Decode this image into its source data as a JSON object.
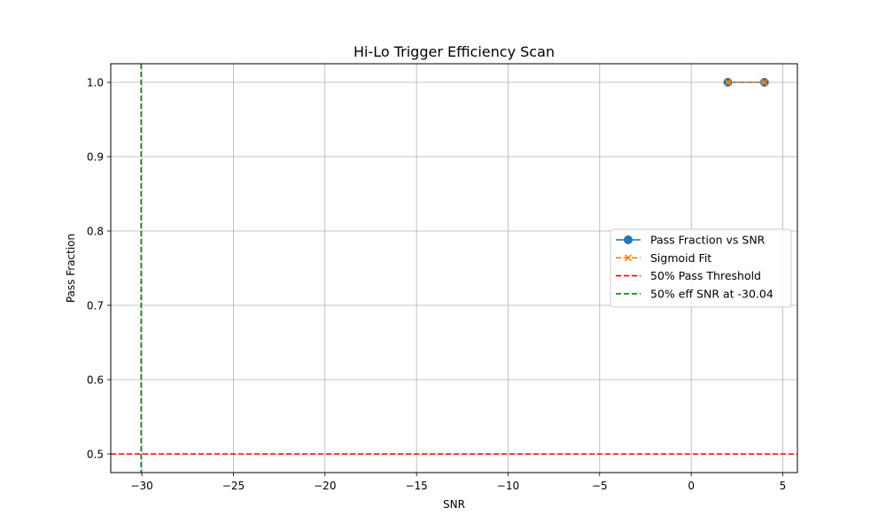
{
  "chart_data": {
    "type": "line",
    "title": "Hi-Lo Trigger Efficiency Scan",
    "xlabel": "SNR",
    "ylabel": "Pass Fraction",
    "xlim": [
      -31.7,
      5.8
    ],
    "ylim": [
      0.475,
      1.025
    ],
    "x_ticks": [
      -30,
      -25,
      -20,
      -15,
      -10,
      -5,
      0,
      5
    ],
    "y_ticks": [
      0.5,
      0.6,
      0.7,
      0.8,
      0.9,
      1.0
    ],
    "x_tick_labels": [
      "−30",
      "−25",
      "−20",
      "−15",
      "−10",
      "−5",
      "0",
      "5"
    ],
    "y_tick_labels": [
      "0.5",
      "0.6",
      "0.7",
      "0.8",
      "0.9",
      "1.0"
    ],
    "grid": true,
    "legend_position": "center-right",
    "series": [
      {
        "name": "Pass Fraction vs SNR",
        "x": [
          2,
          4
        ],
        "y": [
          1.0,
          1.0
        ],
        "color": "#1f77b4",
        "style": "solid",
        "marker": "circle"
      },
      {
        "name": "Sigmoid Fit",
        "x": [
          2,
          4
        ],
        "y": [
          1.0,
          1.0
        ],
        "color": "#ff7f0e",
        "style": "dashed",
        "marker": "x"
      }
    ],
    "reference_lines": [
      {
        "name": "50% Pass Threshold",
        "orientation": "horizontal",
        "value": 0.5,
        "color": "#ff0000",
        "style": "dashed"
      },
      {
        "name": "50% eff SNR at -30.04",
        "orientation": "vertical",
        "value": -30.04,
        "color": "#008000",
        "style": "dashed"
      }
    ]
  }
}
